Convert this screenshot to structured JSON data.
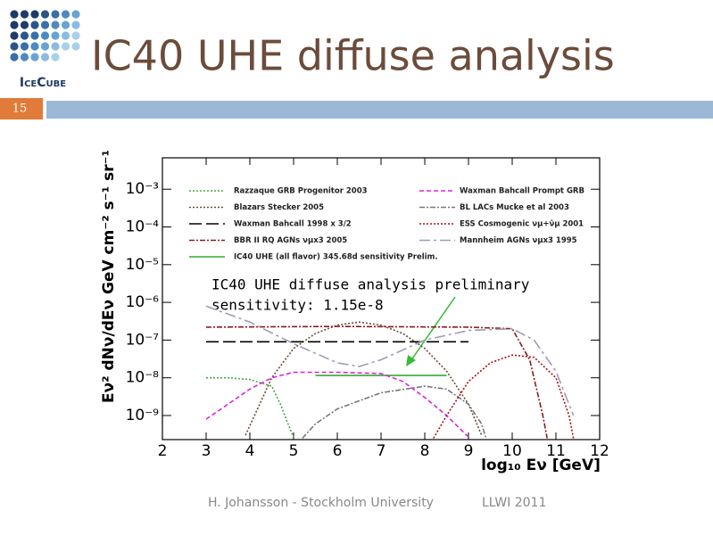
{
  "slide": {
    "logo_text": "IceCube",
    "title": "IC40 UHE diffuse analysis",
    "page_number": "15",
    "footer": [
      "H. Johansson - Stockholm University",
      "LLWI 2011"
    ]
  },
  "chart_data": {
    "type": "line",
    "log_y": true,
    "xlabel": "log₁₀ Eν [GeV]",
    "ylabel": "Eν² dNν/dEν GeV cm⁻² s⁻¹ sr⁻¹",
    "xlim": [
      2,
      12
    ],
    "xticks": [
      2,
      3,
      4,
      5,
      6,
      7,
      8,
      9,
      10,
      11,
      12
    ],
    "ylim": [
      2.3e-10,
      0.0068
    ],
    "yticks": [
      {
        "value": 0.001,
        "label": "10⁻³"
      },
      {
        "value": 0.0001,
        "label": "10⁻⁴"
      },
      {
        "value": 1e-05,
        "label": "10⁻⁵"
      },
      {
        "value": 1e-06,
        "label": "10⁻⁶"
      },
      {
        "value": 1e-07,
        "label": "10⁻⁷"
      },
      {
        "value": 1e-08,
        "label": "10⁻⁸"
      },
      {
        "value": 1e-09,
        "label": "10⁻⁹"
      }
    ],
    "annotation": [
      "IC40 UHE diffuse analysis preliminary",
      "sensitivity: 1.15e-8"
    ],
    "series": [
      {
        "name": "Razzaque GRB Progenitor 2003",
        "color": "#44aa44",
        "dash": "2 2",
        "x": [
          3,
          3.5,
          4,
          4.5,
          4.7,
          4.9,
          5
        ],
        "values": [
          1e-08,
          1e-08,
          9e-09,
          6e-09,
          2e-09,
          5e-10,
          2.6e-10
        ]
      },
      {
        "name": "Blazars Stecker 2005",
        "color": "#6b4a3a",
        "dash": "2 2",
        "x": [
          3.9,
          4.5,
          5,
          5.5,
          6,
          6.5,
          7,
          7.5,
          8,
          8.5,
          9,
          9.3
        ],
        "values": [
          3e-10,
          1e-08,
          6e-08,
          1.5e-07,
          2.5e-07,
          3e-07,
          2.5e-07,
          1.5e-07,
          6e-08,
          1.5e-08,
          2e-09,
          3e-10
        ]
      },
      {
        "name": "Waxman Bahcall 1998 x 3/2",
        "color": "#000000",
        "dash": "14 5",
        "x": [
          3,
          9
        ],
        "values": [
          9e-08,
          9e-08
        ]
      },
      {
        "name": "BBR II RQ AGNs νμx3 2005",
        "color": "#8b1a1a",
        "dash": "6 2 2 2",
        "x": [
          3,
          6,
          9,
          10,
          10.4,
          10.7,
          10.8
        ],
        "values": [
          2.2e-07,
          2.3e-07,
          2.2e-07,
          2e-07,
          3e-08,
          1e-09,
          2.5e-10
        ]
      },
      {
        "name": "IC40 UHE (all flavor) 345.68d sensitivity Prelim.",
        "color": "#33aa33",
        "dash": "",
        "x": [
          5.5,
          8.5
        ],
        "values": [
          1.15e-08,
          1.15e-08
        ]
      },
      {
        "name": "Waxman Bahcall Prompt GRB",
        "color": "#dd22dd",
        "dash": "5 3",
        "x": [
          3,
          3.5,
          4,
          4.5,
          5,
          6,
          7,
          7.5,
          8,
          8.5,
          9
        ],
        "values": [
          8e-10,
          2e-09,
          5e-09,
          1e-08,
          1.4e-08,
          1.4e-08,
          1.3e-08,
          8e-09,
          3e-09,
          1e-09,
          2.7e-10
        ]
      },
      {
        "name": "BL LACs Mucke et al 2003",
        "color": "#777777",
        "dash": "6 2 2 2",
        "x": [
          5.2,
          5.5,
          6,
          7,
          8,
          8.5,
          9,
          9.3,
          9.4
        ],
        "values": [
          2.5e-10,
          6e-10,
          1.5e-09,
          4e-09,
          6e-09,
          5e-09,
          2e-09,
          6e-10,
          2.5e-10
        ]
      },
      {
        "name": "ESS Cosmogenic νμ+ν̄μ 2001",
        "color": "#aa1111",
        "dash": "2 2",
        "x": [
          8.2,
          8.5,
          9,
          9.5,
          10,
          10.5,
          11,
          11.3,
          11.4
        ],
        "values": [
          2.5e-10,
          1e-09,
          8e-09,
          2.5e-08,
          4e-08,
          3.5e-08,
          1e-08,
          1e-09,
          2.5e-10
        ]
      },
      {
        "name": "Mannheim AGNs νμx3 1995",
        "color": "#a09ab8",
        "dash": "12 4 3 4",
        "x": [
          3,
          4,
          5,
          6,
          6.5,
          7,
          8,
          9,
          10,
          10.5,
          11,
          11.4
        ],
        "values": [
          8e-07,
          3e-07,
          8e-08,
          2.5e-08,
          2e-08,
          3e-08,
          1e-07,
          1.8e-07,
          2e-07,
          1e-07,
          1.5e-08,
          1e-09
        ]
      }
    ]
  }
}
